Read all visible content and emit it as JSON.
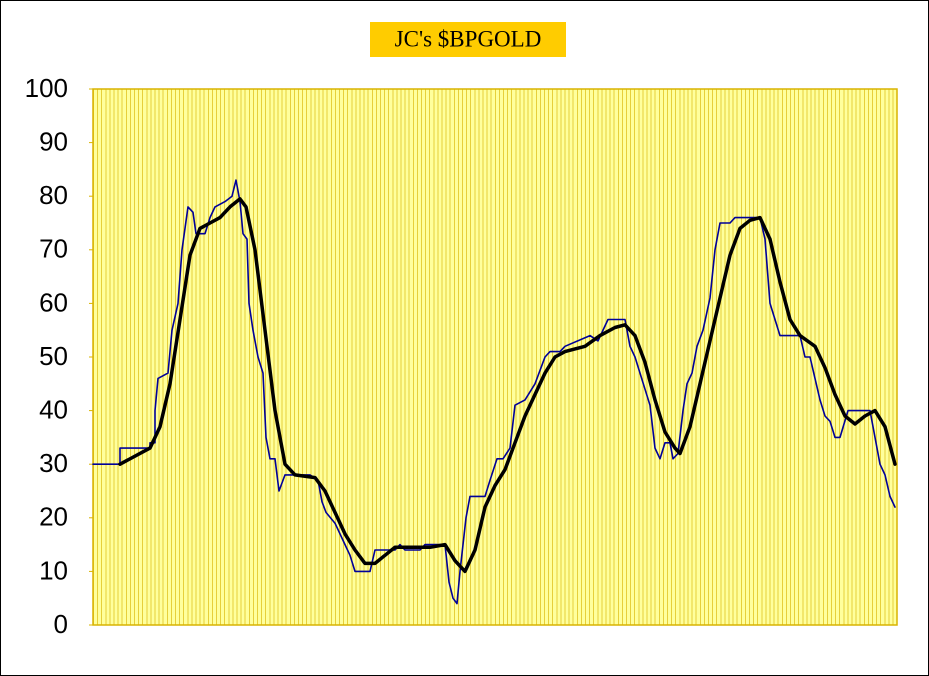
{
  "chart_data": {
    "type": "line",
    "title": "JC's $BPGOLD",
    "xlim": [
      0,
      804
    ],
    "ylim": [
      0,
      100
    ],
    "yticks": [
      0,
      10,
      20,
      30,
      40,
      50,
      60,
      70,
      80,
      90,
      100
    ],
    "series": [
      {
        "color": "#000099",
        "width": 1.6,
        "x": [
          0,
          27,
          27,
          57,
          57,
          62,
          62,
          65,
          75,
          79,
          85,
          89,
          95,
          100,
          103,
          112,
          117,
          122,
          132,
          139,
          143,
          147,
          150,
          154,
          156,
          160,
          165,
          170,
          173,
          177,
          182,
          186,
          192,
          217,
          225,
          229,
          233,
          242,
          247,
          252,
          257,
          262,
          277,
          282,
          302,
          307,
          312,
          327,
          332,
          352,
          356,
          360,
          364,
          367,
          373,
          377,
          392,
          397,
          404,
          410,
          417,
          422,
          432,
          442,
          452,
          457,
          467,
          472,
          497,
          505,
          515,
          532,
          537,
          542,
          547,
          552,
          557,
          562,
          567,
          572,
          577,
          580,
          585,
          590,
          594,
          599,
          604,
          610,
          617,
          622,
          627,
          637,
          642,
          667,
          672,
          677,
          682,
          687,
          707,
          712,
          717,
          722,
          727,
          732,
          737,
          742,
          747,
          755,
          777,
          782,
          787,
          792,
          797,
          802
        ],
        "values": [
          30,
          30,
          33,
          33,
          34,
          34,
          40,
          46,
          47,
          55,
          60,
          70,
          78,
          77,
          73,
          73,
          76,
          78,
          79,
          80,
          83,
          79,
          73,
          72,
          60,
          55,
          50,
          47,
          35,
          31,
          31,
          25,
          28,
          28,
          27,
          23,
          21,
          19,
          17,
          15,
          13,
          10,
          10,
          14,
          14,
          15,
          14,
          14,
          15,
          15,
          8,
          5,
          4,
          10,
          20,
          24,
          24,
          27,
          31,
          31,
          33,
          41,
          42,
          45,
          50,
          51,
          51,
          52,
          54,
          53,
          57,
          57,
          52,
          50,
          47,
          44,
          41,
          33,
          31,
          34,
          34,
          31,
          32,
          40,
          45,
          47,
          52,
          55,
          61,
          70,
          75,
          75,
          76,
          76,
          72,
          60,
          57,
          54,
          54,
          50,
          50,
          46,
          42,
          39,
          38,
          35,
          35,
          40,
          40,
          35,
          30,
          28,
          24,
          22
        ]
      },
      {
        "color": "#000000",
        "width": 3.5,
        "x": [
          27,
          57,
          67,
          77,
          87,
          97,
          107,
          117,
          127,
          137,
          147,
          153,
          162,
          172,
          182,
          192,
          202,
          222,
          232,
          242,
          252,
          262,
          272,
          282,
          292,
          302,
          337,
          352,
          362,
          372,
          382,
          392,
          402,
          412,
          422,
          432,
          442,
          452,
          462,
          472,
          492,
          507,
          522,
          532,
          542,
          552,
          562,
          572,
          582,
          587,
          597,
          607,
          617,
          627,
          637,
          647,
          657,
          667,
          677,
          687,
          697,
          707,
          722,
          732,
          742,
          752,
          762,
          772,
          782,
          792,
          802
        ],
        "values": [
          30,
          33,
          37,
          45,
          57,
          69,
          74,
          75,
          76,
          78,
          79.5,
          78,
          70,
          55,
          40,
          30,
          28,
          27.5,
          25,
          21,
          17,
          14,
          11.5,
          11.5,
          13,
          14.5,
          14.5,
          15,
          12,
          10,
          14,
          22,
          26,
          29,
          34,
          39,
          43,
          47,
          50,
          51,
          52,
          54,
          55.5,
          56,
          54,
          49,
          42,
          36,
          33,
          32,
          37,
          45,
          53,
          61,
          69,
          74,
          75.5,
          76,
          72,
          64,
          57,
          54,
          52,
          48,
          43,
          39,
          37.5,
          39,
          40,
          37,
          30
        ]
      }
    ]
  }
}
